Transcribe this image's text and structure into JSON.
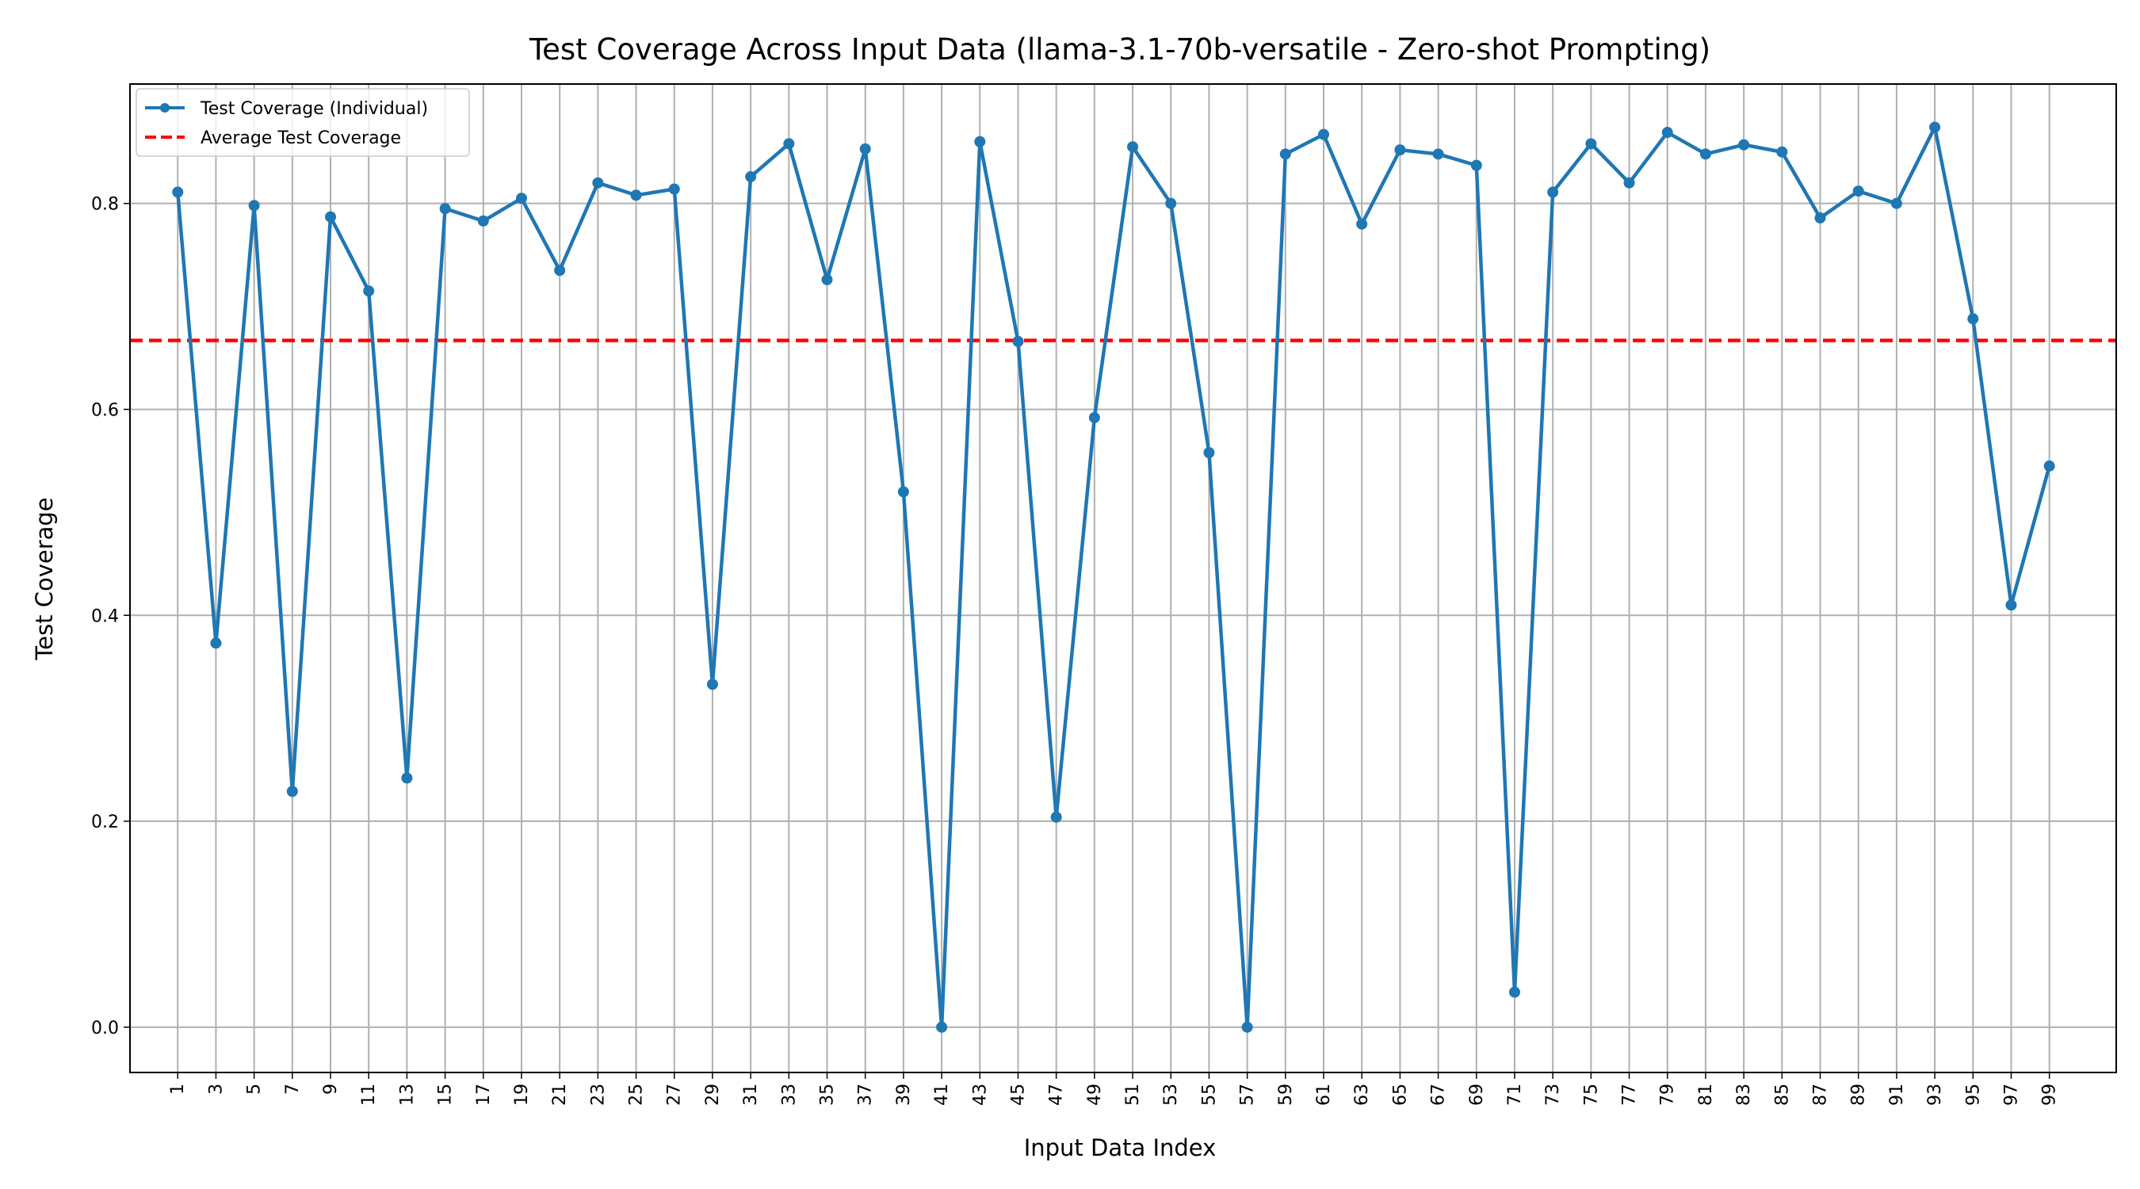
{
  "chart_data": {
    "type": "line",
    "title": "Test Coverage Across Input Data (llama-3.1-70b-versatile - Zero-shot Prompting)",
    "xlabel": "Input Data Index",
    "ylabel": "Test Coverage",
    "xlim": [
      -1.5,
      102.5
    ],
    "ylim": [
      -0.044,
      0.916
    ],
    "grid": true,
    "legend_position": "upper-left",
    "x": [
      1,
      3,
      5,
      7,
      9,
      11,
      13,
      15,
      17,
      19,
      21,
      23,
      25,
      27,
      29,
      31,
      33,
      35,
      37,
      39,
      41,
      43,
      45,
      47,
      49,
      51,
      53,
      55,
      57,
      59,
      61,
      63,
      65,
      67,
      69,
      71,
      73,
      75,
      77,
      79,
      81,
      83,
      85,
      87,
      89,
      91,
      93,
      95,
      97,
      99
    ],
    "x_ticks": [
      "1",
      "3",
      "5",
      "7",
      "9",
      "11",
      "13",
      "15",
      "17",
      "19",
      "21",
      "23",
      "25",
      "27",
      "29",
      "31",
      "33",
      "35",
      "37",
      "39",
      "41",
      "43",
      "45",
      "47",
      "49",
      "51",
      "53",
      "55",
      "57",
      "59",
      "61",
      "63",
      "65",
      "67",
      "69",
      "71",
      "73",
      "75",
      "77",
      "79",
      "81",
      "83",
      "85",
      "87",
      "89",
      "91",
      "93",
      "95",
      "97",
      "99"
    ],
    "y_ticks": [
      "0.0",
      "0.2",
      "0.4",
      "0.6",
      "0.8"
    ],
    "y_tick_values": [
      0.0,
      0.2,
      0.4,
      0.6,
      0.8
    ],
    "series": [
      {
        "name": "Test Coverage (Individual)",
        "color": "#1f77b4",
        "style": "solid-with-markers",
        "values": [
          0.811,
          0.373,
          0.798,
          0.229,
          0.787,
          0.715,
          0.242,
          0.795,
          0.783,
          0.805,
          0.735,
          0.82,
          0.808,
          0.814,
          0.333,
          0.826,
          0.858,
          0.726,
          0.853,
          0.52,
          0.0,
          0.86,
          0.666,
          0.204,
          0.592,
          0.855,
          0.8,
          0.558,
          0.0,
          0.848,
          0.867,
          0.78,
          0.852,
          0.848,
          0.837,
          0.034,
          0.811,
          0.858,
          0.82,
          0.869,
          0.848,
          0.857,
          0.85,
          0.786,
          0.812,
          0.8,
          0.874,
          0.688,
          0.41,
          0.545
        ]
      },
      {
        "name": "Average Test Coverage",
        "color": "#ff0000",
        "style": "dashed",
        "value": 0.667
      }
    ]
  }
}
